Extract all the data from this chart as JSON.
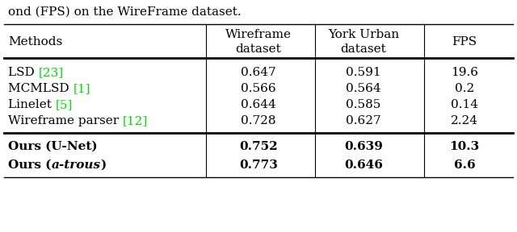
{
  "caption": "ond (FPS) on the WireFrame dataset.",
  "col_headers": [
    "Methods",
    "Wireframe\ndataset",
    "York Urban\ndataset",
    "FPS"
  ],
  "rows": [
    {
      "method": "LSD ",
      "ref": "[23]",
      "ref_color": "#00dd00",
      "wf": "0.647",
      "yu": "0.591",
      "fps": "19.6",
      "bold": false,
      "italic_method": false
    },
    {
      "method": "MCMLSD ",
      "ref": "[1]",
      "ref_color": "#00dd00",
      "wf": "0.566",
      "yu": "0.564",
      "fps": "0.2",
      "bold": false,
      "italic_method": false
    },
    {
      "method": "Linelet ",
      "ref": "[5]",
      "ref_color": "#00dd00",
      "wf": "0.644",
      "yu": "0.585",
      "fps": "0.14",
      "bold": false,
      "italic_method": false
    },
    {
      "method": "Wireframe parser ",
      "ref": "[12]",
      "ref_color": "#00dd00",
      "wf": "0.728",
      "yu": "0.627",
      "fps": "2.24",
      "bold": false,
      "italic_method": false
    },
    {
      "method": "Ours (U-Net)",
      "ref": "",
      "ref_color": "#000000",
      "wf": "0.752",
      "yu": "0.639",
      "fps": "10.3",
      "bold": true,
      "italic_method": false
    },
    {
      "method": "Ours (",
      "ref": "",
      "ref_color": "#000000",
      "italic_part": "a-trous",
      "method_suffix": ")",
      "wf": "0.773",
      "yu": "0.646",
      "fps": "6.6",
      "bold": true,
      "italic_method": true
    }
  ],
  "background_color": "#ffffff",
  "text_color": "#000000"
}
